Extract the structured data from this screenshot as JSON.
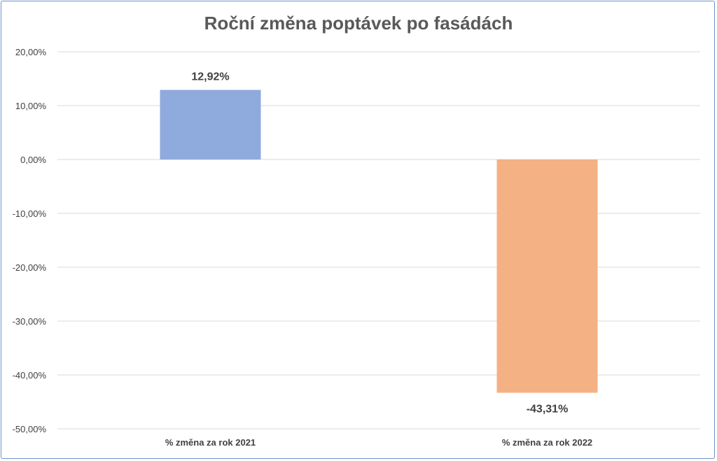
{
  "chart_data": {
    "type": "bar",
    "title": "Roční změna poptávek po fasádách",
    "categories": [
      "% změna za rok 2021",
      "% změna za rok 2022"
    ],
    "values": [
      12.92,
      -43.31
    ],
    "data_labels": [
      "12,92%",
      "-43,31%"
    ],
    "bar_colors": [
      "#8faadc",
      "#f4b183"
    ],
    "ylim": [
      -50,
      20
    ],
    "yticks": [
      20,
      10,
      0,
      -10,
      -20,
      -30,
      -40,
      -50
    ],
    "ytick_labels": [
      "20,00%",
      "10,00%",
      "0,00%",
      "-10,00%",
      "-20,00%",
      "-30,00%",
      "-40,00%",
      "-50,00%"
    ],
    "grid": true,
    "legend": "none",
    "xlabel": "",
    "ylabel": ""
  }
}
